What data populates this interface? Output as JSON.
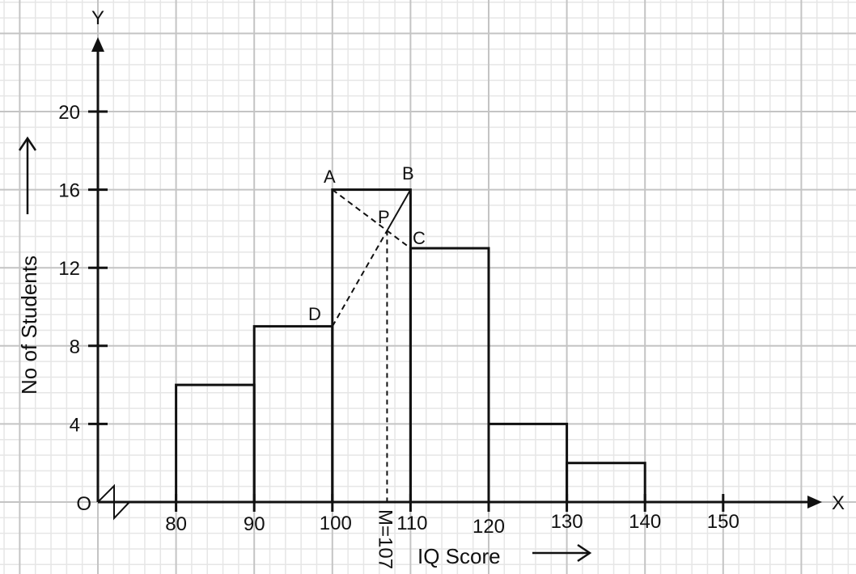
{
  "chart_data": {
    "type": "bar",
    "subtype": "histogram",
    "title": "",
    "xlabel": "IQ Score",
    "ylabel": "No of Students",
    "x_axis_name": "X",
    "y_axis_name": "Y",
    "origin_label": "O",
    "x_ticks": [
      80,
      90,
      100,
      110,
      120,
      130,
      140,
      150
    ],
    "y_ticks": [
      4,
      8,
      12,
      16,
      20
    ],
    "categories": [
      "80-90",
      "90-100",
      "100-110",
      "110-120",
      "120-130",
      "130-140"
    ],
    "bins": [
      [
        80,
        90
      ],
      [
        90,
        100
      ],
      [
        100,
        110
      ],
      [
        110,
        120
      ],
      [
        120,
        130
      ],
      [
        130,
        140
      ]
    ],
    "values": [
      6,
      9,
      16,
      13,
      4,
      2
    ],
    "xlim": [
      70,
      160
    ],
    "ylim": [
      0,
      24
    ],
    "grid": true,
    "axis_break": true,
    "mode_construction": {
      "points": {
        "A": [
          100,
          16
        ],
        "B": [
          110,
          16
        ],
        "C": [
          110,
          13
        ],
        "D": [
          100,
          9
        ],
        "P": [
          107,
          13.9
        ]
      },
      "mode_label": "M=107",
      "mode_value": 107
    }
  }
}
